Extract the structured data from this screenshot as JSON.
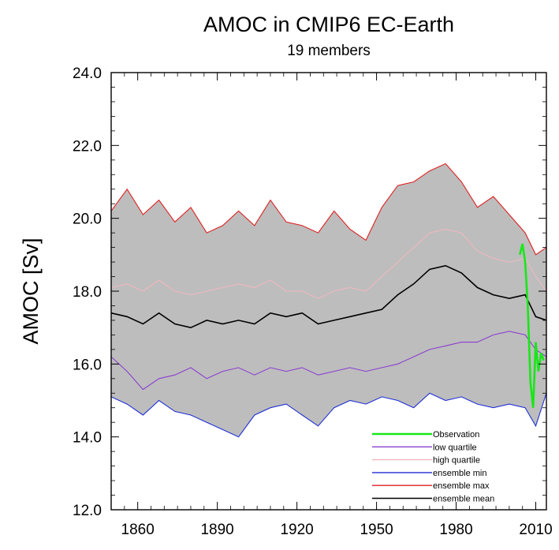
{
  "chart_data": {
    "type": "line",
    "title": "AMOC in CMIP6 EC-Earth",
    "subtitle": "19 members",
    "ylabel": "AMOC [Sv]",
    "xlabel": "",
    "xlim": [
      1850,
      2014
    ],
    "ylim": [
      12.0,
      24.0
    ],
    "yticks": [
      12.0,
      14.0,
      16.0,
      18.0,
      20.0,
      22.0,
      24.0
    ],
    "ytick_labels": [
      "12.0",
      "14.0",
      "16.0",
      "18.0",
      "20.0",
      "22.0",
      "24.0"
    ],
    "xticks": [
      1860,
      1890,
      1920,
      1950,
      1980,
      2010
    ],
    "xtick_labels": [
      "1860",
      "1890",
      "1920",
      "1950",
      "1980",
      "2010"
    ],
    "grid": false,
    "legend_position": "bottom-right",
    "band_fill": "#bdbdbd",
    "series": [
      {
        "name": "ensemble max",
        "color": "#e02020",
        "x": [
          1850,
          1856,
          1862,
          1868,
          1874,
          1880,
          1886,
          1892,
          1898,
          1904,
          1910,
          1916,
          1922,
          1928,
          1934,
          1940,
          1946,
          1952,
          1958,
          1964,
          1970,
          1976,
          1982,
          1988,
          1994,
          2000,
          2006,
          2010,
          2014
        ],
        "y": [
          20.2,
          20.8,
          20.1,
          20.5,
          19.9,
          20.3,
          19.6,
          19.8,
          20.2,
          19.8,
          20.5,
          19.9,
          19.8,
          19.6,
          20.2,
          19.7,
          19.4,
          20.3,
          20.9,
          21.0,
          21.3,
          21.5,
          21.0,
          20.3,
          20.6,
          20.1,
          19.6,
          19.0,
          19.2
        ]
      },
      {
        "name": "high quartile",
        "color": "#f0b8c0",
        "x": [
          1850,
          1856,
          1862,
          1868,
          1874,
          1880,
          1886,
          1892,
          1898,
          1904,
          1910,
          1916,
          1922,
          1928,
          1934,
          1940,
          1946,
          1952,
          1958,
          1964,
          1970,
          1976,
          1982,
          1988,
          1994,
          2000,
          2006,
          2010,
          2014
        ],
        "y": [
          18.1,
          18.2,
          18.0,
          18.3,
          18.0,
          17.9,
          18.0,
          18.1,
          18.2,
          18.1,
          18.3,
          18.0,
          18.0,
          17.8,
          18.0,
          18.1,
          18.0,
          18.4,
          18.8,
          19.2,
          19.6,
          19.7,
          19.6,
          19.1,
          18.9,
          18.8,
          18.9,
          18.4,
          18.0
        ]
      },
      {
        "name": "ensemble mean",
        "color": "#000000",
        "x": [
          1850,
          1856,
          1862,
          1868,
          1874,
          1880,
          1886,
          1892,
          1898,
          1904,
          1910,
          1916,
          1922,
          1928,
          1934,
          1940,
          1946,
          1952,
          1958,
          1964,
          1970,
          1976,
          1982,
          1988,
          1994,
          2000,
          2006,
          2010,
          2014
        ],
        "y": [
          17.4,
          17.3,
          17.1,
          17.4,
          17.1,
          17.0,
          17.2,
          17.1,
          17.2,
          17.1,
          17.4,
          17.3,
          17.4,
          17.1,
          17.2,
          17.3,
          17.4,
          17.5,
          17.9,
          18.2,
          18.6,
          18.7,
          18.5,
          18.1,
          17.9,
          17.8,
          17.9,
          17.3,
          17.2
        ]
      },
      {
        "name": "low quartile",
        "color": "#8a3fd0",
        "x": [
          1850,
          1856,
          1862,
          1868,
          1874,
          1880,
          1886,
          1892,
          1898,
          1904,
          1910,
          1916,
          1922,
          1928,
          1934,
          1940,
          1946,
          1952,
          1958,
          1964,
          1970,
          1976,
          1982,
          1988,
          1994,
          2000,
          2006,
          2010,
          2014
        ],
        "y": [
          16.2,
          15.8,
          15.3,
          15.6,
          15.7,
          15.9,
          15.6,
          15.8,
          15.9,
          15.7,
          15.9,
          15.8,
          15.9,
          15.7,
          15.8,
          15.9,
          15.8,
          15.9,
          16.0,
          16.2,
          16.4,
          16.5,
          16.6,
          16.6,
          16.8,
          16.9,
          16.8,
          16.4,
          16.2
        ]
      },
      {
        "name": "ensemble min",
        "color": "#1f2fd6",
        "x": [
          1850,
          1856,
          1862,
          1868,
          1874,
          1880,
          1886,
          1892,
          1898,
          1904,
          1910,
          1916,
          1922,
          1928,
          1934,
          1940,
          1946,
          1952,
          1958,
          1964,
          1970,
          1976,
          1982,
          1988,
          1994,
          2000,
          2006,
          2010,
          2014
        ],
        "y": [
          15.1,
          14.9,
          14.6,
          15.0,
          14.7,
          14.6,
          14.4,
          14.2,
          14.0,
          14.6,
          14.8,
          14.9,
          14.6,
          14.3,
          14.8,
          15.0,
          14.9,
          15.1,
          15.0,
          14.8,
          15.2,
          15.0,
          15.1,
          14.9,
          14.8,
          14.9,
          14.8,
          14.3,
          15.2
        ]
      },
      {
        "name": "Observation",
        "color": "#19e619",
        "x": [
          2004,
          2005,
          2006,
          2007,
          2008,
          2009,
          2010,
          2011,
          2012,
          2013
        ],
        "y": [
          19.0,
          19.3,
          18.8,
          17.6,
          15.5,
          14.8,
          16.6,
          15.8,
          16.3,
          16.1
        ]
      }
    ],
    "legend": [
      "Observation",
      "low quartile",
      "high quartile",
      "ensemble min",
      "ensemble max",
      "ensemble mean"
    ]
  }
}
